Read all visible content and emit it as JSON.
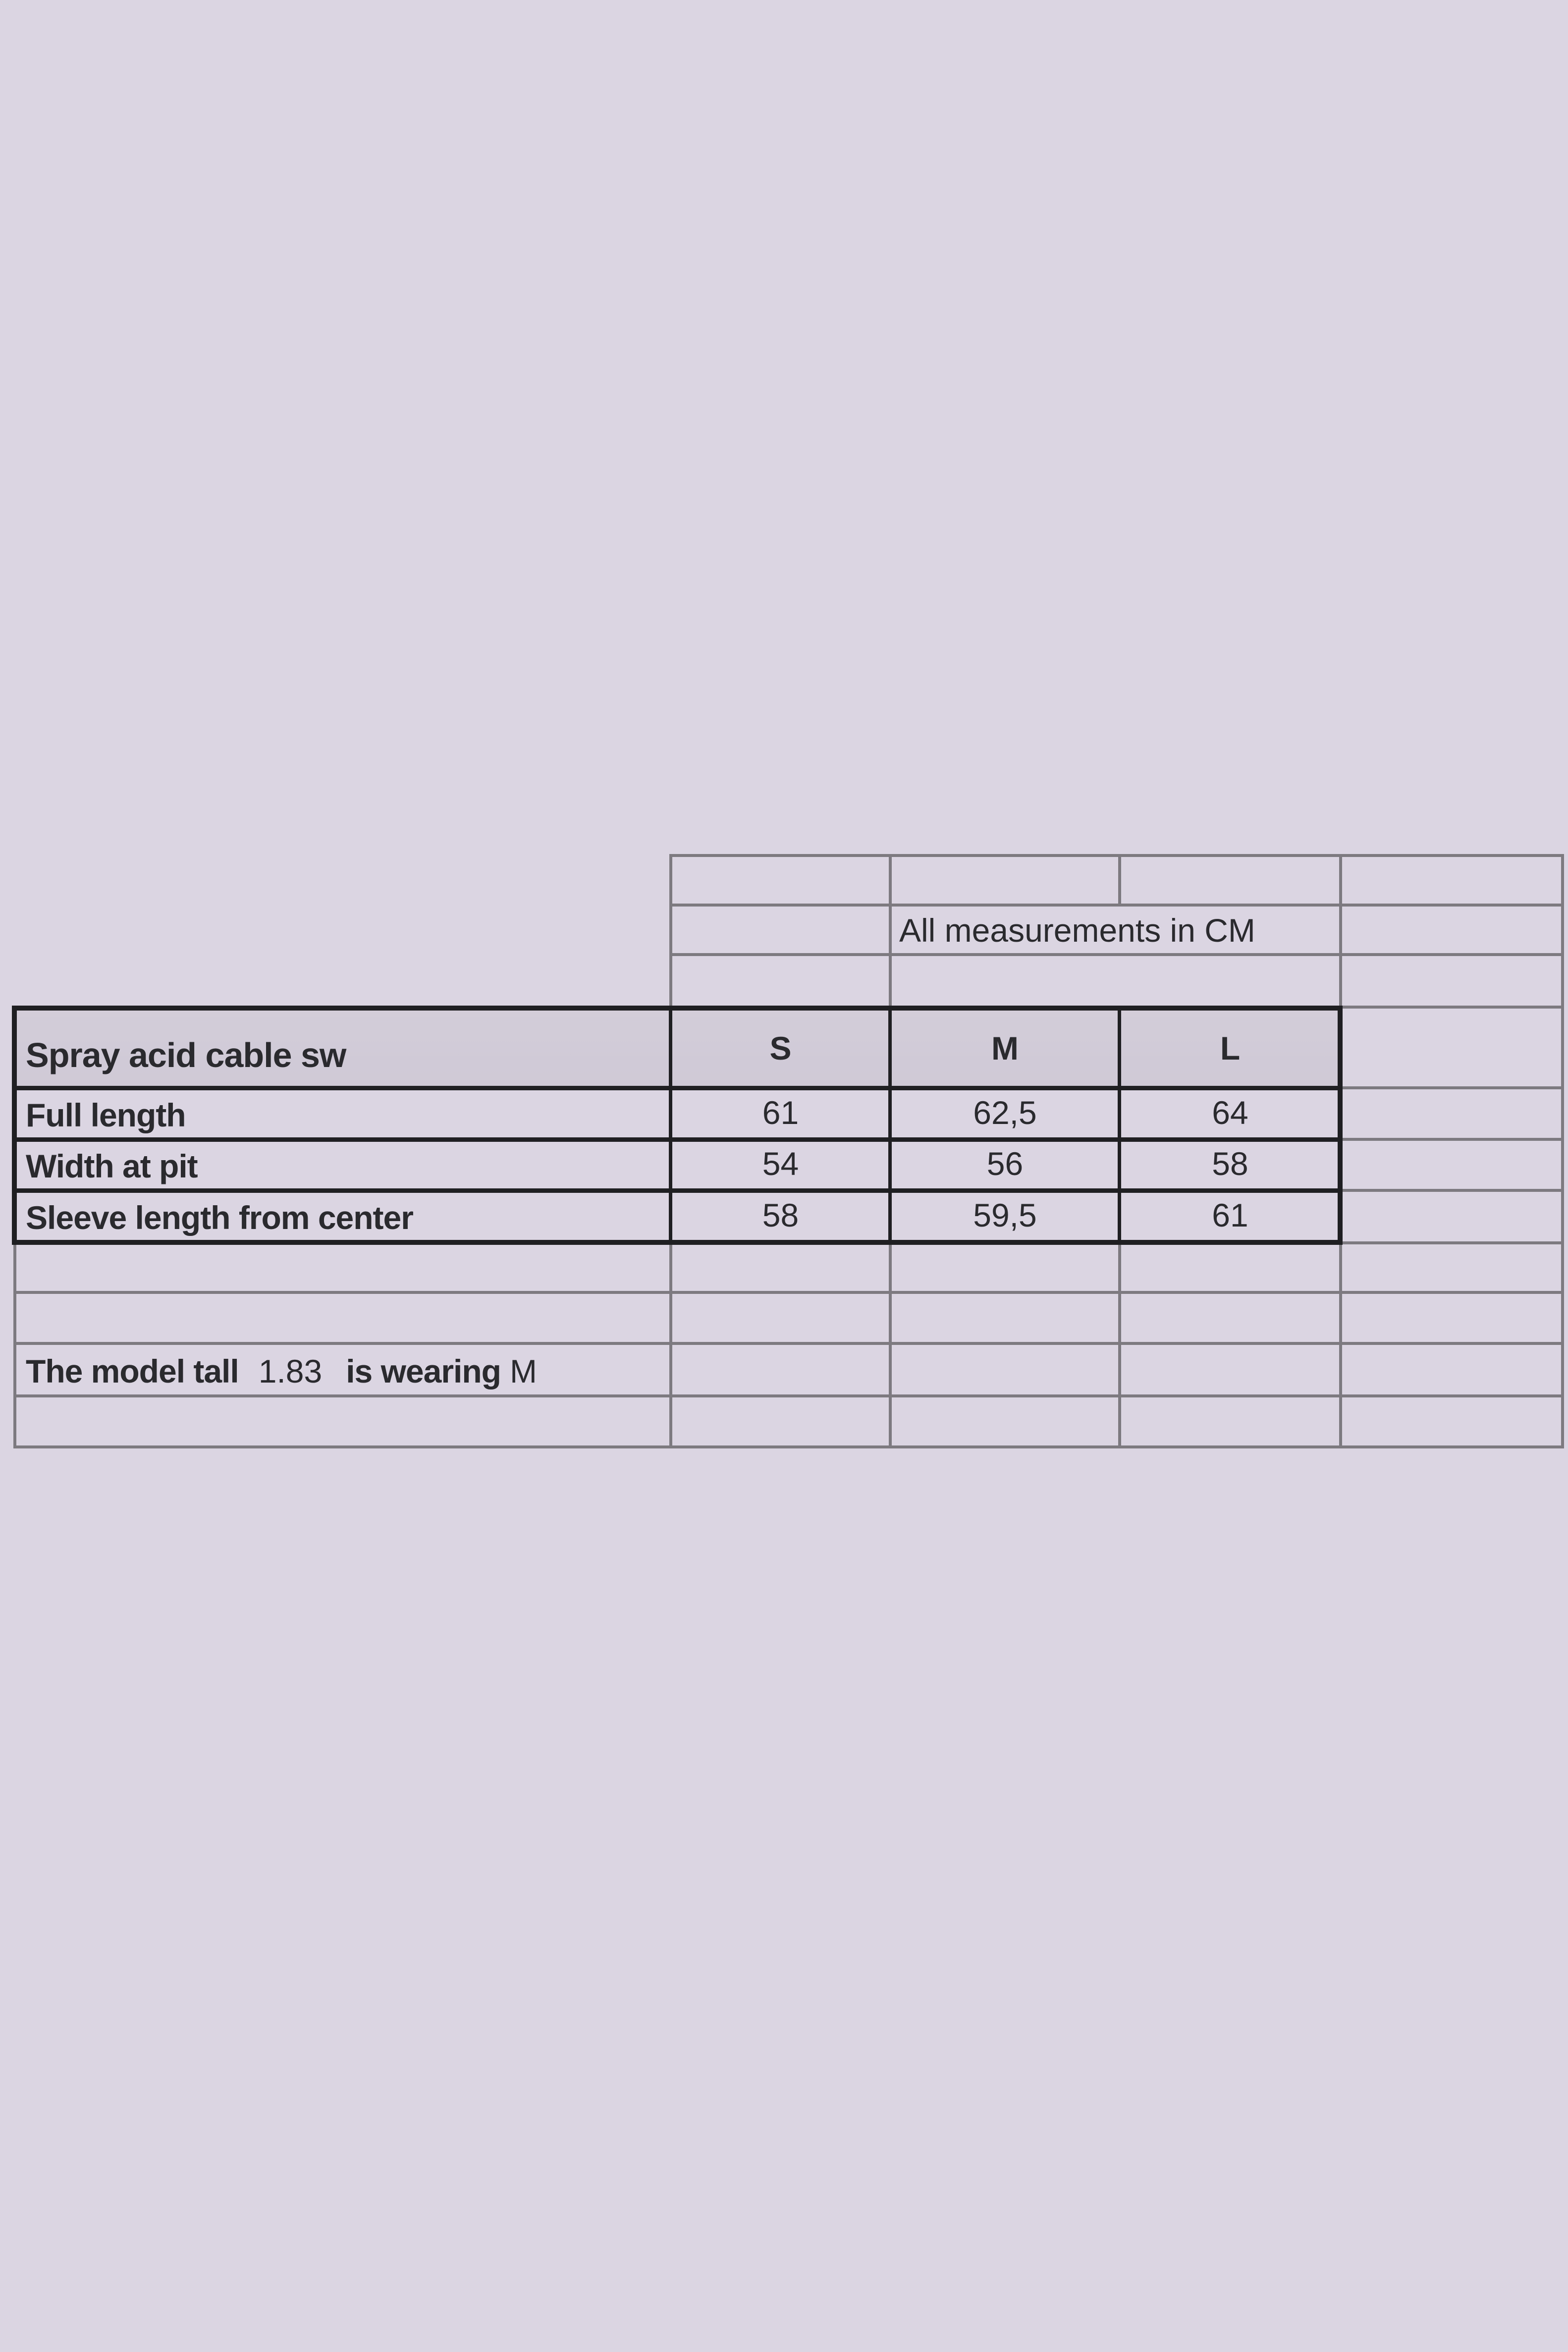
{
  "note": "All measurements in CM",
  "table": {
    "title": "Spray acid cable sw",
    "sizes": [
      "S",
      "M",
      "L"
    ],
    "rows": [
      {
        "label": "Full length",
        "values": [
          "61",
          "62,5",
          "64"
        ]
      },
      {
        "label": "Width at pit",
        "values": [
          "54",
          "56",
          "58"
        ]
      },
      {
        "label": "Sleeve length from center",
        "values": [
          "58",
          "59,5",
          "61"
        ]
      }
    ]
  },
  "model": {
    "prefix": "The model tall",
    "height": "1.83",
    "middle": "is wearing",
    "size": "M"
  }
}
